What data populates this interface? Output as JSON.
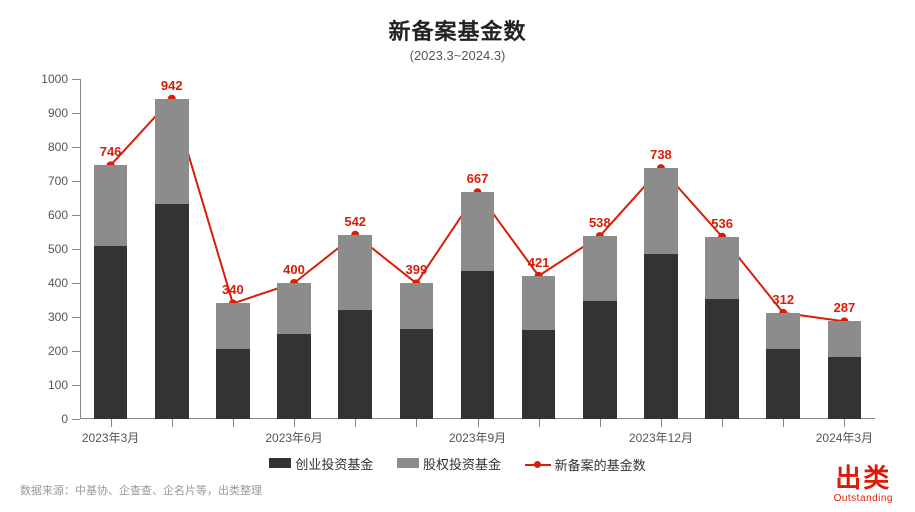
{
  "title": "新备案基金数",
  "subtitle": "(2023.3~2024.3)",
  "footer_note": "数据来源：中基协、企查查、企名片等，出类整理",
  "brand": {
    "cn": "出类",
    "en": "Outstanding",
    "color": "#d81e06"
  },
  "chart": {
    "type": "stacked-bar-with-line",
    "ylim": [
      0,
      1000
    ],
    "ytick_step": 100,
    "bar_width_ratio": 0.55,
    "colors": {
      "series_a": "#333333",
      "series_b": "#8c8c8c",
      "line": "#d81e06",
      "axis": "#888888",
      "label_text": "#555555",
      "data_label": "#d81e06",
      "background": "#ffffff"
    },
    "x_labels": [
      "2023年3月",
      "",
      "",
      "2023年6月",
      "",
      "",
      "2023年9月",
      "",
      "",
      "2023年12月",
      "",
      "",
      "2024年3月"
    ],
    "series_a": {
      "name": "创业投资基金",
      "values": [
        508,
        632,
        205,
        250,
        320,
        265,
        435,
        262,
        348,
        485,
        352,
        206,
        182
      ]
    },
    "series_b": {
      "name": "股权投资基金",
      "values": [
        238,
        310,
        135,
        150,
        222,
        134,
        232,
        159,
        190,
        253,
        184,
        106,
        105
      ]
    },
    "line": {
      "name": "新备案的基金数",
      "values": [
        746,
        942,
        340,
        400,
        542,
        399,
        667,
        421,
        538,
        738,
        536,
        312,
        287
      ]
    },
    "marker_radius": 4,
    "line_width": 2
  }
}
